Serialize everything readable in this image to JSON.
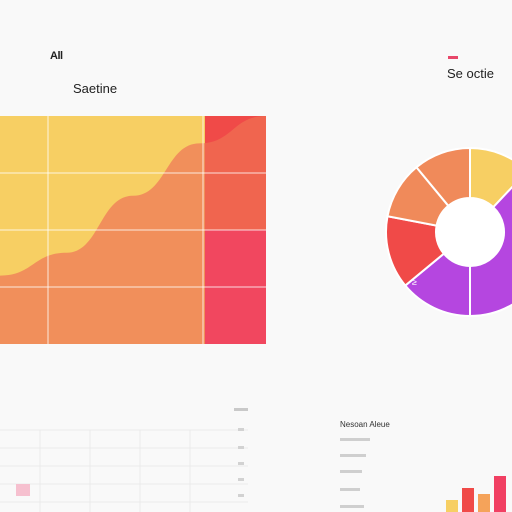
{
  "header": {
    "top_left_label": "All",
    "area_title": "Saetine",
    "donut_title": "Se octie",
    "table_header": "Nesoan Aleue"
  },
  "colors": {
    "yellow": "#f7cf63",
    "light_orange": "#f5a35a",
    "orange": "#f08a5a",
    "red": "#f04a48",
    "pink": "#f14063",
    "purple": "#b546e0",
    "background": "#f9f9f9"
  },
  "chart_data": [
    {
      "type": "area",
      "title": "Saetine",
      "x": [
        0,
        1,
        2,
        3,
        4
      ],
      "series": [
        {
          "values": [
            30,
            40,
            65,
            88,
            100
          ],
          "color": "#f08a5a"
        }
      ],
      "background_columns": [
        {
          "color": "#f7cf63"
        },
        {
          "color": "#f7cf63"
        },
        {
          "color": "#f7cf63"
        },
        {
          "color": "#f04a48"
        }
      ],
      "ylim": [
        0,
        100
      ],
      "grid": true,
      "rows": 4
    },
    {
      "type": "pie",
      "title": "Se octie",
      "donut": true,
      "slices": [
        {
          "value": 12,
          "color": "#f7cf63"
        },
        {
          "value": 38,
          "color": "#b546e0"
        },
        {
          "value": 14,
          "color": "#b546e0"
        },
        {
          "value": 14,
          "color": "#f04a48"
        },
        {
          "value": 11,
          "color": "#f08a5a"
        },
        {
          "value": 11,
          "color": "#f08a5a"
        }
      ],
      "marker_label": "≥"
    },
    {
      "type": "bar",
      "values": [
        28,
        56,
        42,
        84
      ],
      "colors": [
        "#f7cf63",
        "#f04a48",
        "#f5a35a",
        "#f14063"
      ]
    }
  ]
}
